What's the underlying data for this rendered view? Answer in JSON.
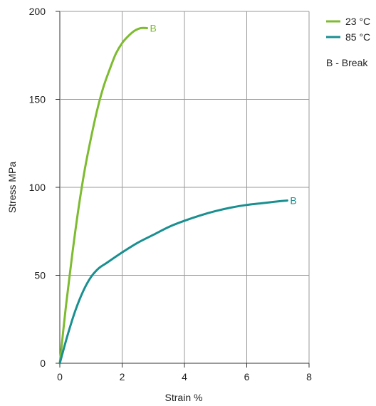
{
  "chart_data": {
    "type": "line",
    "xlabel": "Strain  %",
    "ylabel": "Stress  MPa",
    "xlim": [
      0,
      8
    ],
    "ylim": [
      0,
      200
    ],
    "x_ticks": [
      0,
      2,
      4,
      6,
      8
    ],
    "y_ticks": [
      0,
      50,
      100,
      150,
      200
    ],
    "x_tick_labels": [
      "0",
      "2",
      "4",
      "6",
      "8"
    ],
    "y_tick_labels": [
      "0",
      "50",
      "100",
      "150",
      "200"
    ],
    "grid": true,
    "legend_position": "top-right",
    "legend_note": "B - Break",
    "series": [
      {
        "name": "23 °C",
        "color": "#7dbb2f",
        "break_label": "B",
        "x": [
          0,
          0.2,
          0.4,
          0.6,
          0.8,
          1.0,
          1.2,
          1.4,
          1.6,
          1.8,
          2.0,
          2.2,
          2.4,
          2.6,
          2.8
        ],
        "y": [
          0,
          33,
          62,
          88,
          110,
          128,
          144,
          157,
          167,
          176,
          182,
          186,
          189,
          190.5,
          190.5
        ]
      },
      {
        "name": "85 °C",
        "color": "#1a8f90",
        "break_label": "B",
        "x": [
          0,
          0.25,
          0.5,
          0.75,
          1.0,
          1.25,
          1.5,
          2.0,
          2.5,
          3.0,
          3.5,
          4.0,
          4.5,
          5.0,
          5.5,
          6.0,
          6.5,
          7.0,
          7.3
        ],
        "y": [
          0,
          16,
          30,
          41,
          49,
          54,
          57,
          63,
          68.5,
          73,
          77.5,
          81,
          84,
          86.5,
          88.5,
          90,
          91,
          92,
          92.5
        ]
      }
    ]
  }
}
